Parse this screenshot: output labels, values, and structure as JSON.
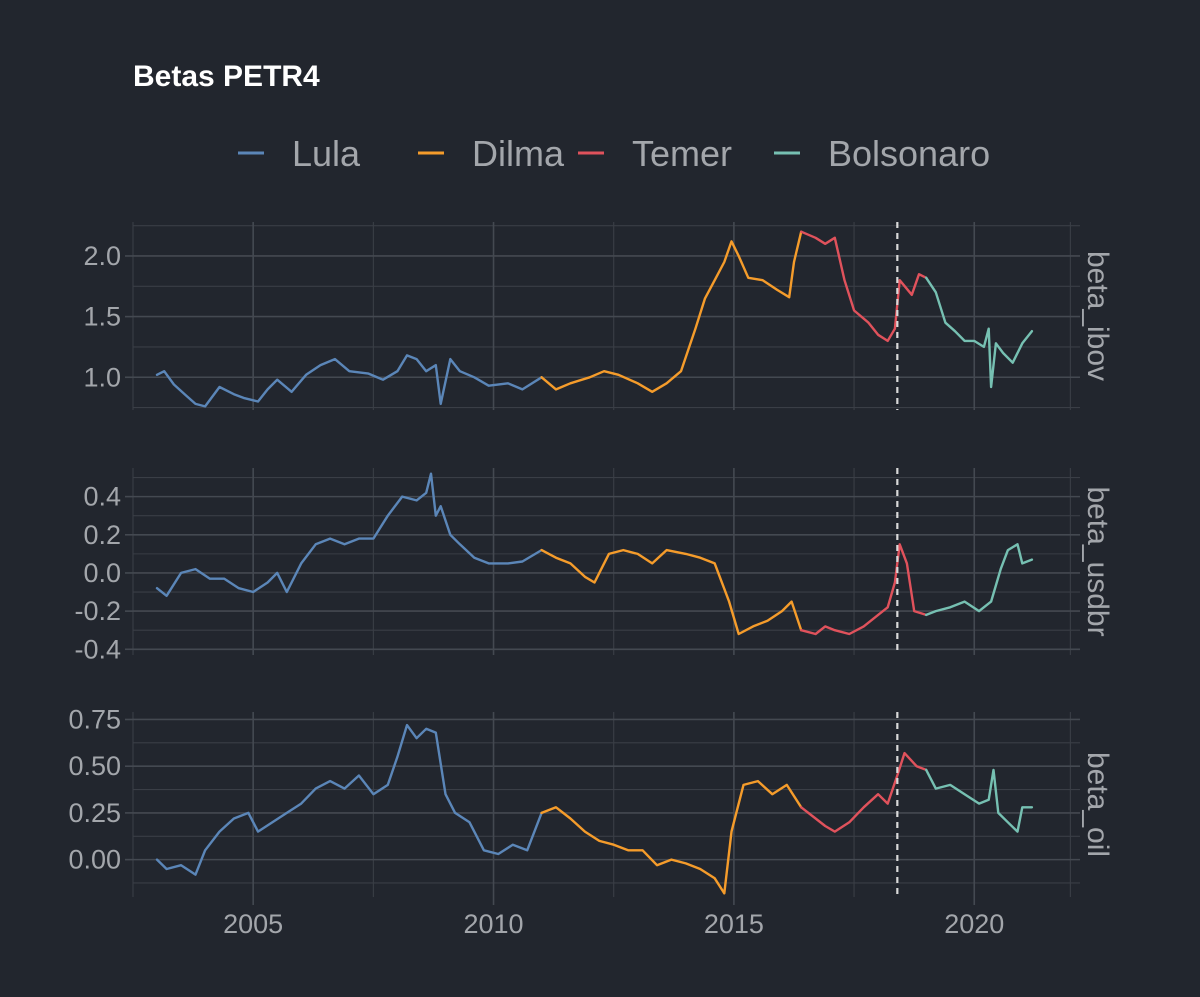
{
  "chart_data": {
    "type": "line",
    "title": "Betas PETR4",
    "legend": {
      "placement": "top",
      "entries": [
        {
          "name": "Lula",
          "color": "#5b86b8"
        },
        {
          "name": "Dilma",
          "color": "#f59c2b"
        },
        {
          "name": "Temer",
          "color": "#e0525c"
        },
        {
          "name": "Bolsonaro",
          "color": "#76c0b2"
        }
      ]
    },
    "x_axis": {
      "ticks": [
        2005,
        2010,
        2015,
        2020
      ],
      "range": [
        2002.5,
        2022.2
      ]
    },
    "vertical_marker": {
      "x": 2018.4,
      "style": "dashed"
    },
    "periods": [
      {
        "name": "Lula",
        "start": 2003.0,
        "end": 2011.0
      },
      {
        "name": "Dilma",
        "start": 2011.0,
        "end": 2016.4
      },
      {
        "name": "Temer",
        "start": 2016.4,
        "end": 2019.0
      },
      {
        "name": "Bolsonaro",
        "start": 2019.0,
        "end": 2021.2
      }
    ],
    "panels": [
      {
        "name": "beta_ibov",
        "ylim": [
          0.73,
          2.28
        ],
        "y_ticks": [
          "1.0",
          "1.5",
          "2.0"
        ],
        "points": [
          [
            2003.0,
            1.02
          ],
          [
            2003.15,
            1.05
          ],
          [
            2003.35,
            0.94
          ],
          [
            2003.6,
            0.85
          ],
          [
            2003.8,
            0.78
          ],
          [
            2004.0,
            0.76
          ],
          [
            2004.3,
            0.92
          ],
          [
            2004.6,
            0.86
          ],
          [
            2004.8,
            0.83
          ],
          [
            2005.1,
            0.8
          ],
          [
            2005.3,
            0.9
          ],
          [
            2005.5,
            0.98
          ],
          [
            2005.8,
            0.88
          ],
          [
            2006.1,
            1.02
          ],
          [
            2006.4,
            1.1
          ],
          [
            2006.7,
            1.15
          ],
          [
            2007.0,
            1.05
          ],
          [
            2007.4,
            1.03
          ],
          [
            2007.7,
            0.98
          ],
          [
            2008.0,
            1.05
          ],
          [
            2008.2,
            1.18
          ],
          [
            2008.4,
            1.15
          ],
          [
            2008.6,
            1.05
          ],
          [
            2008.8,
            1.1
          ],
          [
            2008.9,
            0.78
          ],
          [
            2009.1,
            1.15
          ],
          [
            2009.3,
            1.05
          ],
          [
            2009.6,
            1.0
          ],
          [
            2009.9,
            0.93
          ],
          [
            2010.3,
            0.95
          ],
          [
            2010.6,
            0.9
          ],
          [
            2011.0,
            1.0
          ],
          [
            2011.3,
            0.9
          ],
          [
            2011.6,
            0.95
          ],
          [
            2012.0,
            1.0
          ],
          [
            2012.3,
            1.05
          ],
          [
            2012.6,
            1.02
          ],
          [
            2013.0,
            0.95
          ],
          [
            2013.3,
            0.88
          ],
          [
            2013.6,
            0.95
          ],
          [
            2013.9,
            1.05
          ],
          [
            2014.2,
            1.4
          ],
          [
            2014.4,
            1.65
          ],
          [
            2014.6,
            1.8
          ],
          [
            2014.8,
            1.95
          ],
          [
            2014.95,
            2.12
          ],
          [
            2015.1,
            2.0
          ],
          [
            2015.3,
            1.82
          ],
          [
            2015.6,
            1.8
          ],
          [
            2015.9,
            1.72
          ],
          [
            2016.15,
            1.66
          ],
          [
            2016.25,
            1.95
          ],
          [
            2016.4,
            2.2
          ],
          [
            2016.7,
            2.15
          ],
          [
            2016.9,
            2.1
          ],
          [
            2017.1,
            2.15
          ],
          [
            2017.3,
            1.8
          ],
          [
            2017.5,
            1.55
          ],
          [
            2017.8,
            1.45
          ],
          [
            2018.0,
            1.35
          ],
          [
            2018.2,
            1.3
          ],
          [
            2018.35,
            1.4
          ],
          [
            2018.45,
            1.8
          ],
          [
            2018.7,
            1.68
          ],
          [
            2018.85,
            1.85
          ],
          [
            2019.0,
            1.82
          ],
          [
            2019.2,
            1.7
          ],
          [
            2019.4,
            1.45
          ],
          [
            2019.6,
            1.38
          ],
          [
            2019.8,
            1.3
          ],
          [
            2020.0,
            1.3
          ],
          [
            2020.2,
            1.25
          ],
          [
            2020.3,
            1.4
          ],
          [
            2020.35,
            0.92
          ],
          [
            2020.45,
            1.28
          ],
          [
            2020.6,
            1.2
          ],
          [
            2020.8,
            1.12
          ],
          [
            2021.0,
            1.28
          ],
          [
            2021.2,
            1.38
          ]
        ]
      },
      {
        "name": "beta_usdbr",
        "ylim": [
          -0.43,
          0.55
        ],
        "y_ticks": [
          "-0.4",
          "-0.2",
          "0.0",
          "0.2",
          "0.4"
        ],
        "points": [
          [
            2003.0,
            -0.08
          ],
          [
            2003.2,
            -0.12
          ],
          [
            2003.5,
            0.0
          ],
          [
            2003.8,
            0.02
          ],
          [
            2004.1,
            -0.03
          ],
          [
            2004.4,
            -0.03
          ],
          [
            2004.7,
            -0.08
          ],
          [
            2005.0,
            -0.1
          ],
          [
            2005.3,
            -0.05
          ],
          [
            2005.5,
            0.0
          ],
          [
            2005.7,
            -0.1
          ],
          [
            2006.0,
            0.05
          ],
          [
            2006.3,
            0.15
          ],
          [
            2006.6,
            0.18
          ],
          [
            2006.9,
            0.15
          ],
          [
            2007.2,
            0.18
          ],
          [
            2007.5,
            0.18
          ],
          [
            2007.8,
            0.3
          ],
          [
            2008.1,
            0.4
          ],
          [
            2008.4,
            0.38
          ],
          [
            2008.6,
            0.42
          ],
          [
            2008.7,
            0.52
          ],
          [
            2008.8,
            0.3
          ],
          [
            2008.9,
            0.35
          ],
          [
            2009.1,
            0.2
          ],
          [
            2009.3,
            0.15
          ],
          [
            2009.6,
            0.08
          ],
          [
            2009.9,
            0.05
          ],
          [
            2010.3,
            0.05
          ],
          [
            2010.6,
            0.06
          ],
          [
            2011.0,
            0.12
          ],
          [
            2011.3,
            0.08
          ],
          [
            2011.6,
            0.05
          ],
          [
            2011.9,
            -0.02
          ],
          [
            2012.1,
            -0.05
          ],
          [
            2012.4,
            0.1
          ],
          [
            2012.7,
            0.12
          ],
          [
            2013.0,
            0.1
          ],
          [
            2013.3,
            0.05
          ],
          [
            2013.6,
            0.12
          ],
          [
            2014.0,
            0.1
          ],
          [
            2014.3,
            0.08
          ],
          [
            2014.6,
            0.05
          ],
          [
            2014.9,
            -0.15
          ],
          [
            2015.1,
            -0.32
          ],
          [
            2015.4,
            -0.28
          ],
          [
            2015.7,
            -0.25
          ],
          [
            2016.0,
            -0.2
          ],
          [
            2016.2,
            -0.15
          ],
          [
            2016.4,
            -0.3
          ],
          [
            2016.7,
            -0.32
          ],
          [
            2016.9,
            -0.28
          ],
          [
            2017.1,
            -0.3
          ],
          [
            2017.4,
            -0.32
          ],
          [
            2017.7,
            -0.28
          ],
          [
            2018.0,
            -0.22
          ],
          [
            2018.2,
            -0.18
          ],
          [
            2018.35,
            -0.05
          ],
          [
            2018.45,
            0.15
          ],
          [
            2018.6,
            0.05
          ],
          [
            2018.75,
            -0.2
          ],
          [
            2019.0,
            -0.22
          ],
          [
            2019.2,
            -0.2
          ],
          [
            2019.5,
            -0.18
          ],
          [
            2019.8,
            -0.15
          ],
          [
            2020.1,
            -0.2
          ],
          [
            2020.35,
            -0.15
          ],
          [
            2020.55,
            0.02
          ],
          [
            2020.7,
            0.12
          ],
          [
            2020.9,
            0.15
          ],
          [
            2021.0,
            0.05
          ],
          [
            2021.2,
            0.07
          ]
        ]
      },
      {
        "name": "beta_oil",
        "ylim": [
          -0.2,
          0.79
        ],
        "y_ticks": [
          "0.00",
          "0.25",
          "0.50",
          "0.75"
        ],
        "points": [
          [
            2003.0,
            0.0
          ],
          [
            2003.2,
            -0.05
          ],
          [
            2003.5,
            -0.03
          ],
          [
            2003.8,
            -0.08
          ],
          [
            2004.0,
            0.05
          ],
          [
            2004.3,
            0.15
          ],
          [
            2004.6,
            0.22
          ],
          [
            2004.9,
            0.25
          ],
          [
            2005.1,
            0.15
          ],
          [
            2005.4,
            0.2
          ],
          [
            2005.7,
            0.25
          ],
          [
            2006.0,
            0.3
          ],
          [
            2006.3,
            0.38
          ],
          [
            2006.6,
            0.42
          ],
          [
            2006.9,
            0.38
          ],
          [
            2007.2,
            0.45
          ],
          [
            2007.5,
            0.35
          ],
          [
            2007.8,
            0.4
          ],
          [
            2008.0,
            0.55
          ],
          [
            2008.2,
            0.72
          ],
          [
            2008.4,
            0.65
          ],
          [
            2008.6,
            0.7
          ],
          [
            2008.8,
            0.68
          ],
          [
            2009.0,
            0.35
          ],
          [
            2009.2,
            0.25
          ],
          [
            2009.5,
            0.2
          ],
          [
            2009.8,
            0.05
          ],
          [
            2010.1,
            0.03
          ],
          [
            2010.4,
            0.08
          ],
          [
            2010.7,
            0.05
          ],
          [
            2011.0,
            0.25
          ],
          [
            2011.3,
            0.28
          ],
          [
            2011.6,
            0.22
          ],
          [
            2011.9,
            0.15
          ],
          [
            2012.2,
            0.1
          ],
          [
            2012.5,
            0.08
          ],
          [
            2012.8,
            0.05
          ],
          [
            2013.1,
            0.05
          ],
          [
            2013.4,
            -0.03
          ],
          [
            2013.7,
            0.0
          ],
          [
            2014.0,
            -0.02
          ],
          [
            2014.3,
            -0.05
          ],
          [
            2014.6,
            -0.1
          ],
          [
            2014.8,
            -0.18
          ],
          [
            2014.95,
            0.15
          ],
          [
            2015.2,
            0.4
          ],
          [
            2015.5,
            0.42
          ],
          [
            2015.8,
            0.35
          ],
          [
            2016.1,
            0.4
          ],
          [
            2016.4,
            0.28
          ],
          [
            2016.7,
            0.22
          ],
          [
            2016.9,
            0.18
          ],
          [
            2017.1,
            0.15
          ],
          [
            2017.4,
            0.2
          ],
          [
            2017.7,
            0.28
          ],
          [
            2018.0,
            0.35
          ],
          [
            2018.2,
            0.3
          ],
          [
            2018.4,
            0.45
          ],
          [
            2018.55,
            0.57
          ],
          [
            2018.8,
            0.5
          ],
          [
            2019.0,
            0.48
          ],
          [
            2019.2,
            0.38
          ],
          [
            2019.5,
            0.4
          ],
          [
            2019.8,
            0.35
          ],
          [
            2020.1,
            0.3
          ],
          [
            2020.3,
            0.32
          ],
          [
            2020.4,
            0.48
          ],
          [
            2020.5,
            0.25
          ],
          [
            2020.7,
            0.2
          ],
          [
            2020.9,
            0.15
          ],
          [
            2021.0,
            0.28
          ],
          [
            2021.2,
            0.28
          ]
        ]
      }
    ]
  }
}
